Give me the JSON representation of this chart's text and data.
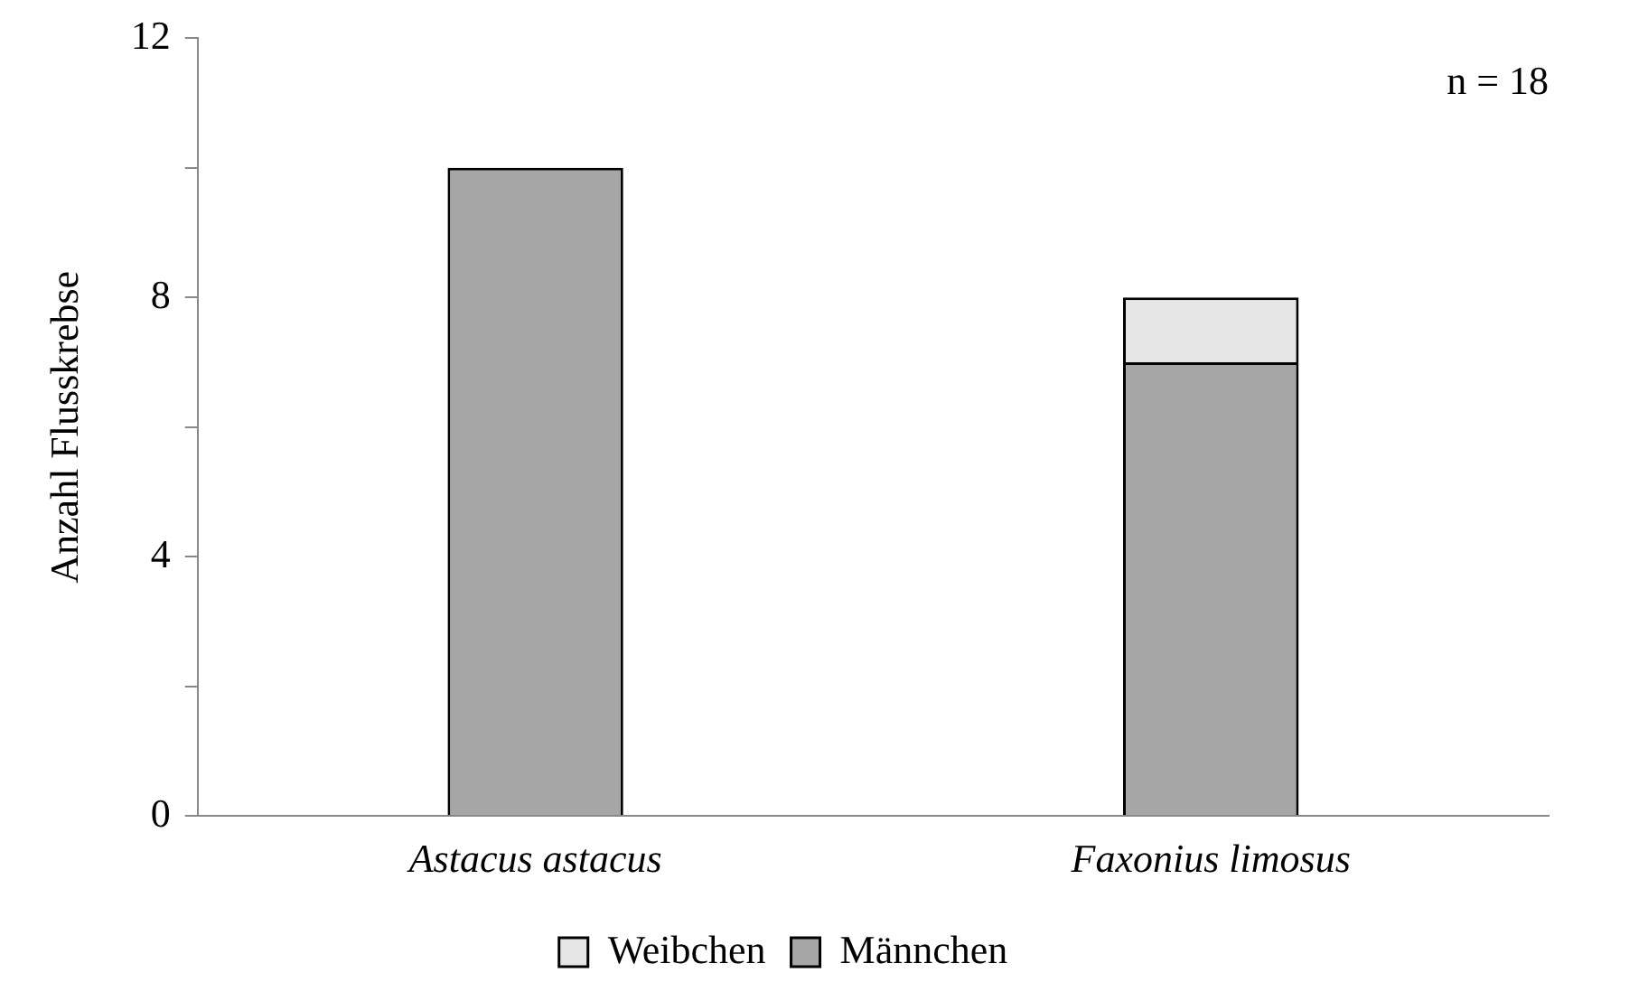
{
  "chart_data": {
    "type": "bar",
    "ylabel": "Anzahl Flusskrebse",
    "categories": [
      "Astacus astacus",
      "Faxonius limosus"
    ],
    "stacked": true,
    "series": [
      {
        "name": "Männchen",
        "color": "#a6a6a6",
        "values": [
          10,
          7
        ]
      },
      {
        "name": "Weibchen",
        "color": "#e6e6e6",
        "values": [
          0,
          1
        ]
      }
    ],
    "ylim": [
      0,
      12
    ],
    "yticks": [
      0,
      {
        "value": 2,
        "label": null
      },
      4,
      {
        "value": 6,
        "label": null
      },
      8,
      {
        "value": 10,
        "label": null
      },
      12
    ],
    "grid": false,
    "legend": "bottom",
    "annotations": [
      "n = 18"
    ]
  }
}
